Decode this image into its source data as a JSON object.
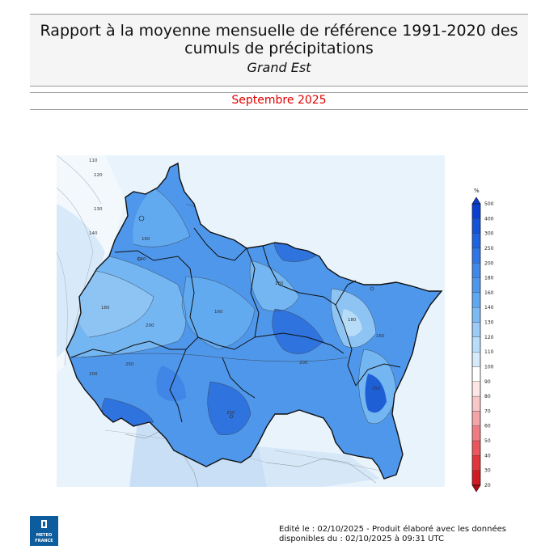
{
  "header": {
    "title_line1": "Rapport à la moyenne mensuelle de référence 1991-2020 des",
    "title_line2": "cumuls de précipitations",
    "region": "Grand Est",
    "period": "Septembre 2025"
  },
  "map": {
    "contour_labels": [
      "110",
      "120",
      "130",
      "140",
      "160",
      "180",
      "200",
      "250",
      "160",
      "140",
      "180",
      "200",
      "250",
      "160",
      "200",
      "180",
      "250"
    ],
    "colors": {
      "outside_light": "#e6f1fb",
      "c110": "#d3e7f8",
      "c130": "#a9d2f5",
      "c140": "#8ec4f3",
      "c160": "#62aaf0",
      "c180": "#4f97eb",
      "c200": "#3f86e6",
      "c250": "#2f73df",
      "c300": "#1f5fd6",
      "border": "#111111"
    }
  },
  "legend": {
    "unit": "%",
    "values": [
      "500",
      "400",
      "300",
      "250",
      "200",
      "180",
      "160",
      "140",
      "130",
      "120",
      "110",
      "100",
      "90",
      "80",
      "70",
      "60",
      "50",
      "40",
      "30",
      "20"
    ],
    "colors": [
      "#0a3fd2",
      "#1452d8",
      "#1f63de",
      "#2f75e3",
      "#4088e8",
      "#4e98ec",
      "#5ea8f0",
      "#7bbaf3",
      "#9bcbf6",
      "#b9dcf9",
      "#d5eafb",
      "#ffffff",
      "#fde6e6",
      "#f9c7c8",
      "#f4a3a6",
      "#ef7c82",
      "#ea565d",
      "#e2353c",
      "#d01b22",
      "#b30b12"
    ]
  },
  "footer": {
    "logo_line1": "METEO",
    "logo_line2": "FRANCE",
    "edit_line1": "Edité le : 02/10/2025 - Produit élaboré avec les données",
    "edit_line2": "disponibles du : 02/10/2025 à 09:31 UTC"
  }
}
